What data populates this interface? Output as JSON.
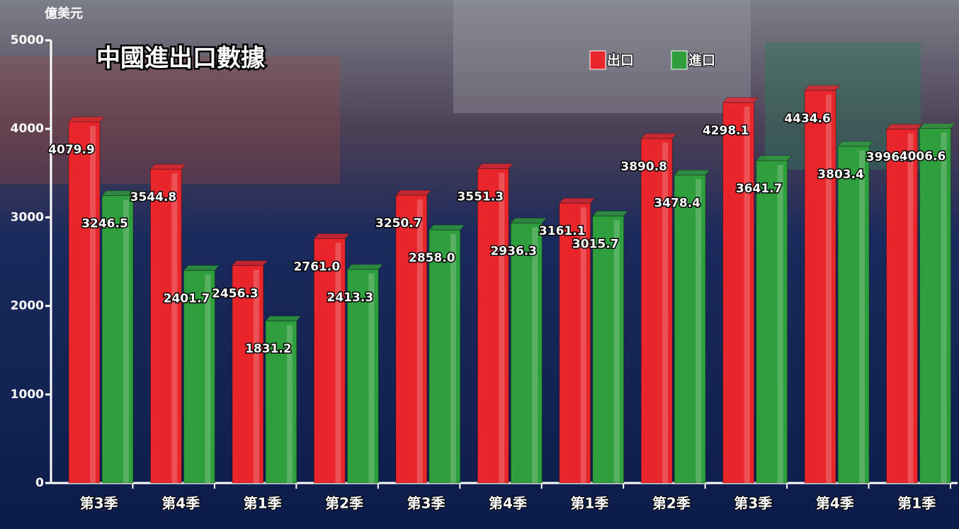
{
  "chart_data": {
    "type": "bar",
    "title": "中國進出口數據",
    "y_axis_label": "億美元",
    "categories": [
      "第3季",
      "第4季",
      "第1季",
      "第2季",
      "第3季",
      "第4季",
      "第1季",
      "第2季",
      "第3季",
      "第4季",
      "第1季"
    ],
    "series": [
      {
        "name": "出口",
        "color": "#e8262c",
        "values": [
          4079.9,
          3544.8,
          2456.3,
          2761,
          3250.7,
          3551.3,
          3161.1,
          3890.8,
          4298.1,
          4434.6,
          3996.4
        ],
        "value_labels": [
          "4079.9",
          "3544.8",
          "2456.3",
          "2761.0",
          "3250.7",
          "3551.3",
          "3161.1",
          "3890.8",
          "4298.1",
          "4434.6",
          "3996.4"
        ]
      },
      {
        "name": "進口",
        "color": "#2f9e3c",
        "values": [
          3246.5,
          2401.7,
          1831.2,
          2413.3,
          2858,
          2936.3,
          3015.7,
          3478.4,
          3641.7,
          3803.4,
          4006.6
        ],
        "value_labels": [
          "3246.5",
          "2401.7",
          "1831.2",
          "2413.3",
          "2858.0",
          "2936.3",
          "3015.7",
          "3478.4",
          "3641.7",
          "3803.4",
          "4006.6"
        ]
      }
    ],
    "ylim": [
      0,
      5000
    ],
    "yticks": [
      0,
      1000,
      2000,
      3000,
      4000,
      5000
    ],
    "legend": "top-right"
  }
}
